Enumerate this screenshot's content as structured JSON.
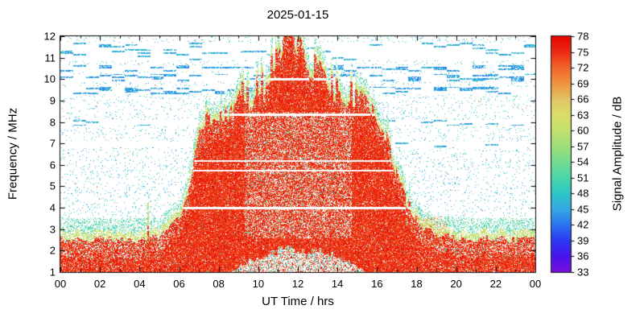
{
  "figure": {
    "background": "#ffffff",
    "axis_color": "#000000"
  },
  "chart_data": {
    "type": "heatmap",
    "title": "2025-01-15",
    "xlabel": "UT Time / hrs",
    "ylabel": "Frequency / MHz",
    "colorbar_label": "Signal Amplitude / dB",
    "x_range_hours": [
      0,
      24
    ],
    "x_tick_hours": [
      0,
      2,
      4,
      6,
      8,
      10,
      12,
      14,
      16,
      18,
      20,
      22,
      24
    ],
    "x_tick_labels": [
      "00",
      "02",
      "04",
      "06",
      "08",
      "10",
      "12",
      "14",
      "16",
      "18",
      "20",
      "22",
      "00"
    ],
    "x_minor_step_hours": 1,
    "y_range_mhz": [
      1,
      12
    ],
    "y_ticks_mhz": [
      1,
      2,
      3,
      4,
      5,
      6,
      7,
      8,
      9,
      10,
      11,
      12
    ],
    "colorbar_range_db": [
      33,
      78
    ],
    "colorbar_ticks_db": [
      33,
      36,
      39,
      42,
      45,
      48,
      51,
      54,
      57,
      60,
      63,
      66,
      69,
      72,
      75,
      78
    ],
    "colormap_stops": [
      [
        33,
        "#7a10dd"
      ],
      [
        36,
        "#4a14ec"
      ],
      [
        39,
        "#2b38f0"
      ],
      [
        42,
        "#2a72f2"
      ],
      [
        45,
        "#36a8e4"
      ],
      [
        48,
        "#2cc8c8"
      ],
      [
        51,
        "#4ad6ac"
      ],
      [
        54,
        "#74dc92"
      ],
      [
        57,
        "#9edf7a"
      ],
      [
        60,
        "#c4e170"
      ],
      [
        63,
        "#dcdf68"
      ],
      [
        66,
        "#e0c566"
      ],
      [
        69,
        "#f0953f"
      ],
      [
        72,
        "#f2662e"
      ],
      [
        75,
        "#ed2d14"
      ],
      [
        78,
        "#e60400"
      ]
    ],
    "envelope_fof2": {
      "hours": [
        0,
        1,
        2,
        3,
        4,
        5,
        6,
        6.5,
        7,
        7.5,
        8,
        8.5,
        9,
        9.5,
        10,
        10.5,
        11,
        11.5,
        11.8,
        12,
        12.5,
        13,
        13.5,
        14,
        14.5,
        15,
        15.5,
        16,
        16.5,
        17,
        17.5,
        18,
        19,
        20,
        21,
        22,
        23,
        24
      ],
      "fmax_mhz": [
        2.6,
        2.5,
        2.6,
        2.5,
        2.5,
        2.7,
        3.6,
        5.0,
        7.6,
        8.2,
        8.3,
        8.5,
        9.4,
        9.0,
        9.9,
        10.2,
        10.8,
        11.8,
        12.0,
        11.6,
        10.8,
        10.3,
        9.7,
        9.4,
        9.2,
        9.3,
        8.8,
        8.1,
        7.2,
        5.4,
        4.2,
        3.3,
        2.8,
        2.6,
        2.5,
        2.6,
        2.5,
        2.6
      ]
    },
    "daytime_min_freq": {
      "start_hour": 8.5,
      "end_hour": 15.5,
      "fmin_mhz": 2.1
    },
    "white_lines_mhz": [
      4.0,
      5.75,
      6.2,
      8.35,
      10.0
    ],
    "noise_bands": [
      {
        "f": [
          2.35,
          3.55
        ],
        "density": 0.26,
        "db": [
          46,
          57
        ],
        "dash": false
      },
      {
        "f": [
          9.3,
          9.65
        ],
        "density": 0.17,
        "db": [
          41,
          49
        ],
        "dash": true
      },
      {
        "f": [
          9.9,
          10.25
        ],
        "density": 0.17,
        "db": [
          41,
          49
        ],
        "dash": true
      },
      {
        "f": [
          10.35,
          10.68
        ],
        "density": 0.13,
        "db": [
          41,
          49
        ],
        "dash": true
      },
      {
        "f": [
          7.85,
          8.12
        ],
        "density": 0.07,
        "db": [
          42,
          50
        ],
        "dash": true
      },
      {
        "f": [
          6.85,
          7.1
        ],
        "density": 0.05,
        "db": [
          42,
          50
        ],
        "dash": true
      },
      {
        "f": [
          10.9,
          11.7
        ],
        "density": 0.05,
        "db": [
          42,
          50
        ],
        "dash": true
      },
      {
        "f": [
          4.55,
          4.8
        ],
        "density": 0.06,
        "db": [
          43,
          51
        ],
        "dash": false
      }
    ],
    "dusk_patch": {
      "hours": [
        16.8,
        19.5
      ],
      "f": [
        2.2,
        3.6
      ],
      "density": 0.2,
      "db": [
        63,
        73
      ]
    },
    "spikes": [
      {
        "hour": 4.4,
        "top_mhz": 4.3
      }
    ],
    "signal_db": {
      "strong": [
        72,
        78
      ],
      "fringe": [
        56,
        65
      ],
      "background_speckle": [
        42,
        54
      ]
    }
  }
}
